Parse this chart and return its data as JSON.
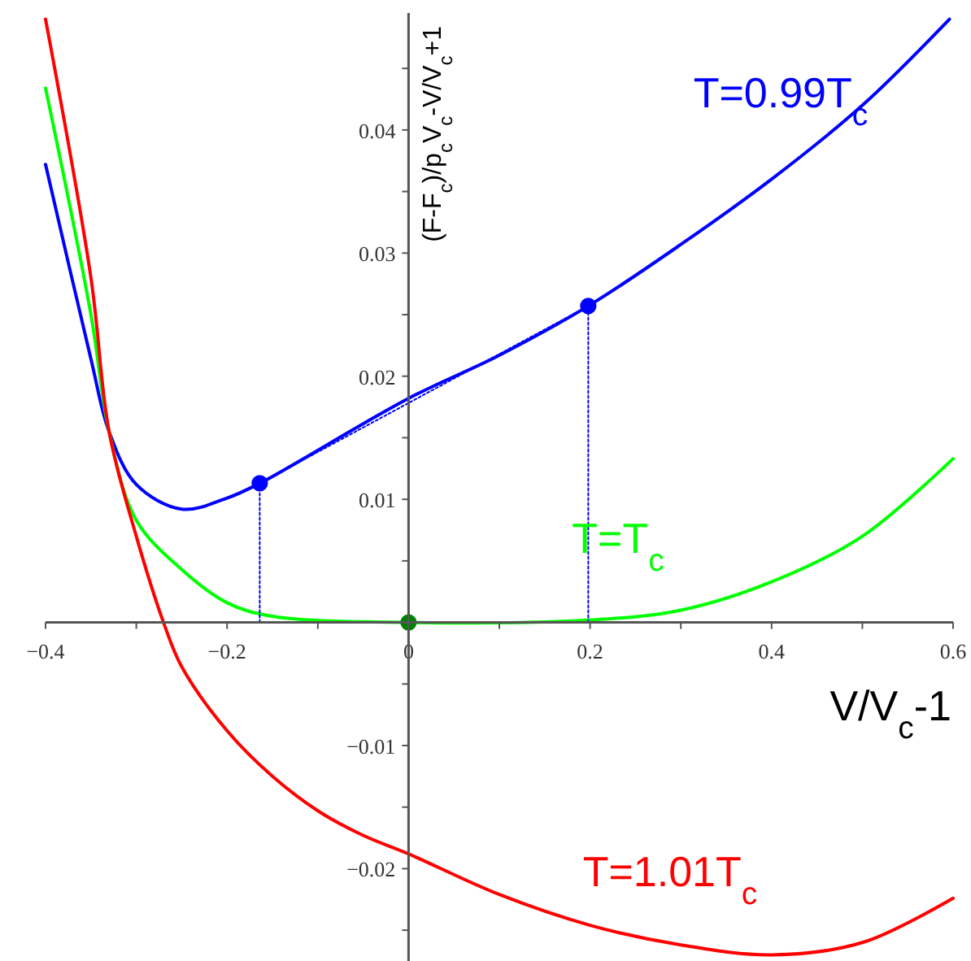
{
  "chart_data": {
    "type": "line",
    "xlabel": "V/V$_{c}$-1",
    "ylabel": "(F-F$_{c}$)/p$_{c}$V$_{c}$-V/V$_{c}$+1",
    "xlim": [
      -0.4,
      0.6
    ],
    "ylim": [
      -0.0275,
      0.0495
    ],
    "xticks": [
      {
        "value": -0.4,
        "label": "−0.4"
      },
      {
        "value": -0.3,
        "label": null
      },
      {
        "value": -0.2,
        "label": "−0.2"
      },
      {
        "value": -0.1,
        "label": null
      },
      0,
      {
        "value": 0.1,
        "label": null
      },
      0.2,
      {
        "value": 0.3,
        "label": null
      },
      0.4,
      {
        "value": 0.5,
        "label": null
      },
      0.6
    ],
    "yticks": [
      {
        "value": -0.025,
        "label": null
      },
      {
        "value": -0.02,
        "label": "−0.02"
      },
      {
        "value": -0.015,
        "label": null
      },
      {
        "value": -0.01,
        "label": "−0.01"
      },
      {
        "value": -0.005,
        "label": null
      },
      {
        "value": 0.005,
        "label": null
      },
      0.01,
      {
        "value": 0.015,
        "label": null
      },
      0.02,
      {
        "value": 0.025,
        "label": null
      },
      0.03,
      {
        "value": 0.035,
        "label": null
      },
      0.04,
      {
        "value": 0.045,
        "label": null
      }
    ],
    "grid": false,
    "series": [
      {
        "name": "T=0.99T$_{c}$",
        "color": "#0000ff",
        "x": [
          -0.4,
          -0.35,
          -0.33,
          -0.3,
          -0.25,
          -0.2,
          -0.164,
          0,
          0.1,
          0.198,
          0.3,
          0.4,
          0.5,
          0.596
        ],
        "values": [
          0.0372,
          0.0214,
          0.0155,
          0.0112,
          0.0092,
          0.0101,
          0.0113,
          0.0182,
          0.0217,
          0.0257,
          0.0307,
          0.036,
          0.042,
          0.049
        ]
      },
      {
        "name": "T=T$_{c}$",
        "color": "#00ff00",
        "x": [
          -0.4,
          -0.35,
          -0.33,
          -0.3,
          -0.25,
          -0.2,
          -0.15,
          0,
          0.2,
          0.3,
          0.4,
          0.5,
          0.6
        ],
        "values": [
          0.0434,
          0.025,
          0.0155,
          0.0083,
          0.0043,
          0.0016,
          0.0005,
          0,
          0.0002,
          0.001,
          0.0033,
          0.007,
          0.0133
        ]
      },
      {
        "name": "T=1.01T$_{c}$",
        "color": "#ff0000",
        "x": [
          -0.4,
          -0.35,
          -0.33,
          -0.3,
          -0.27,
          -0.25,
          -0.2,
          -0.15,
          -0.1,
          -0.05,
          0,
          0.1,
          0.2,
          0.3,
          0.4,
          0.5,
          0.6
        ],
        "values": [
          0.049,
          0.028,
          0.0155,
          0.007,
          0,
          -0.0036,
          -0.0088,
          -0.0125,
          -0.0153,
          -0.0173,
          -0.0188,
          -0.0221,
          -0.0246,
          -0.0262,
          -0.027,
          -0.026,
          -0.0224
        ]
      },
      {
        "color": "#0000ff",
        "line_style": "dotted",
        "x": [
          -0.164,
          0.198
        ],
        "values": [
          0.0113,
          0.0257
        ]
      },
      {
        "color": "#0000ff",
        "line_style": "dotted",
        "x": [
          -0.164,
          -0.164
        ],
        "values": [
          0,
          0.0113
        ]
      },
      {
        "color": "#0000ff",
        "line_style": "dotted",
        "x": [
          0.198,
          0.198
        ],
        "values": [
          0,
          0.0257
        ]
      },
      {
        "type": "scatter",
        "marker": "circle",
        "color": "#0000ff",
        "x": [
          -0.164,
          0.198
        ],
        "values": [
          0.0113,
          0.0257
        ]
      },
      {
        "type": "scatter",
        "marker": "circle",
        "color": "#008000",
        "x": [
          0
        ],
        "values": [
          0
        ]
      }
    ]
  }
}
